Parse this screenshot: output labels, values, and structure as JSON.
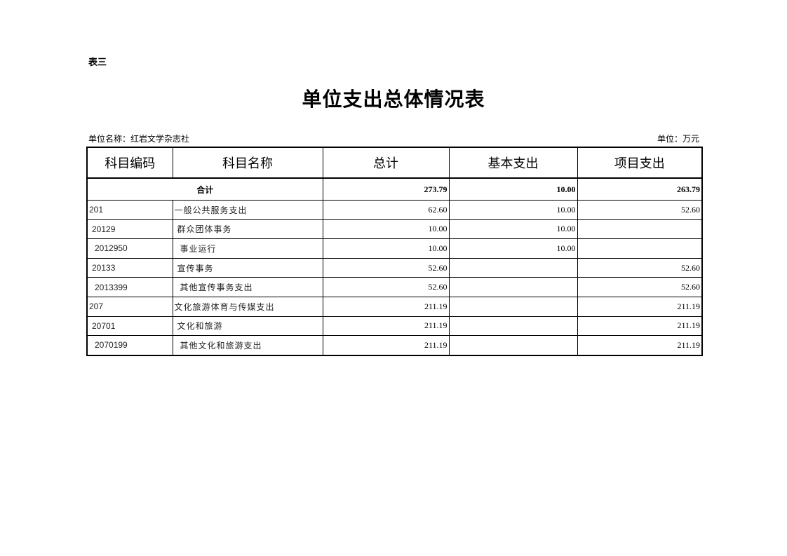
{
  "table_label": "表三",
  "title": "单位支出总体情况表",
  "unit_name": "单位名称：红岩文学杂志社",
  "unit": "单位：万元",
  "headers": [
    "科目编码",
    "科目名称",
    "总计",
    "基本支出",
    "项目支出"
  ],
  "total": {
    "label": "合计",
    "total": "273.79",
    "basic": "10.00",
    "project": "263.79"
  },
  "rows": [
    {
      "code": "201",
      "name": "一般公共服务支出",
      "total": "62.60",
      "basic": "10.00",
      "project": "52.60",
      "indent": 0
    },
    {
      "code": "20129",
      "name": "群众团体事务",
      "total": "10.00",
      "basic": "10.00",
      "project": "",
      "indent": 1
    },
    {
      "code": "2012950",
      "name": "事业运行",
      "total": "10.00",
      "basic": "10.00",
      "project": "",
      "indent": 2
    },
    {
      "code": "20133",
      "name": "宣传事务",
      "total": "52.60",
      "basic": "",
      "project": "52.60",
      "indent": 1
    },
    {
      "code": "2013399",
      "name": "其他宣传事务支出",
      "total": "52.60",
      "basic": "",
      "project": "52.60",
      "indent": 2
    },
    {
      "code": "207",
      "name": "文化旅游体育与传媒支出",
      "total": "211.19",
      "basic": "",
      "project": "211.19",
      "indent": 0
    },
    {
      "code": "20701",
      "name": "文化和旅游",
      "total": "211.19",
      "basic": "",
      "project": "211.19",
      "indent": 1
    },
    {
      "code": "2070199",
      "name": "其他文化和旅游支出",
      "total": "211.19",
      "basic": "",
      "project": "211.19",
      "indent": 2
    }
  ]
}
